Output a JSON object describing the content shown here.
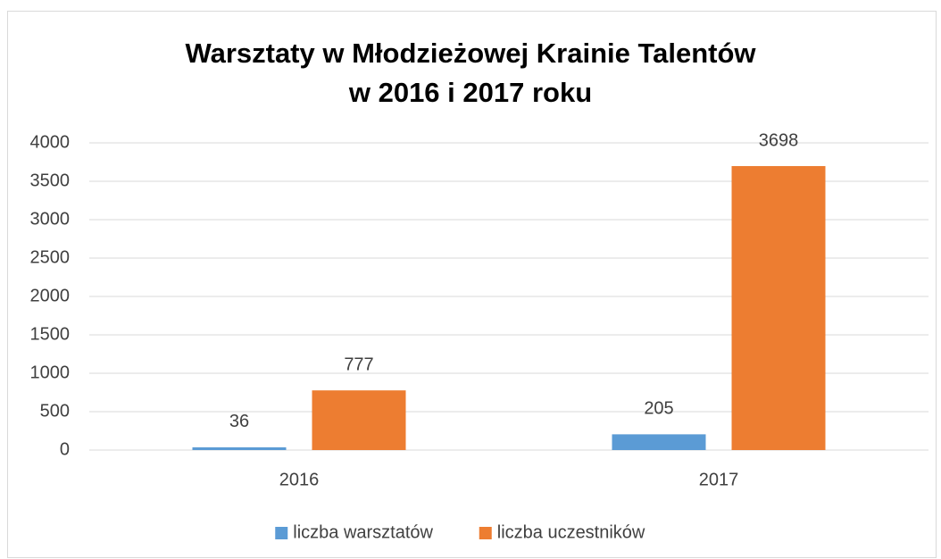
{
  "chart_data": {
    "type": "bar",
    "title": [
      "Warsztaty w Młodzieżowej Krainie Talentów",
      "w 2016 i 2017 roku"
    ],
    "categories": [
      "2016",
      "2017"
    ],
    "series": [
      {
        "name": "liczba warsztatów",
        "color": "#5b9bd5",
        "values": [
          36,
          205
        ]
      },
      {
        "name": "liczba uczestników",
        "color": "#ed7d31",
        "values": [
          777,
          3698
        ]
      }
    ],
    "ylim": [
      0,
      4000
    ],
    "yticks": [
      0,
      500,
      1000,
      1500,
      2000,
      2500,
      3000,
      3500,
      4000
    ],
    "grid": true,
    "legend": "bottom"
  }
}
